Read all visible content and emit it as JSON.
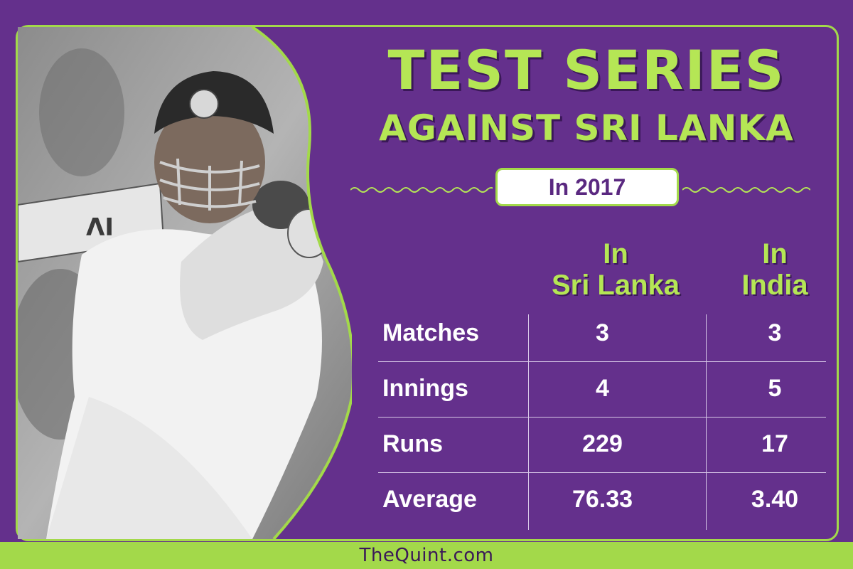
{
  "title": {
    "line1": "TEST SERIES",
    "line2": "AGAINST SRI LANKA"
  },
  "year_label": "In 2017",
  "table": {
    "columns": [
      {
        "line1": "In",
        "line2": "Sri Lanka"
      },
      {
        "line1": "In",
        "line2": "India"
      }
    ],
    "rows": [
      {
        "label": "Matches",
        "values": [
          "3",
          "3"
        ]
      },
      {
        "label": "Innings",
        "values": [
          "4",
          "5"
        ]
      },
      {
        "label": "Runs",
        "values": [
          "229",
          "17"
        ]
      },
      {
        "label": "Average",
        "values": [
          "76.33",
          "3.40"
        ]
      }
    ]
  },
  "footer": {
    "brand": "TheQuint.com"
  },
  "colors": {
    "background": "#64308c",
    "accent_green": "#a3d94a",
    "title_green": "#b5e655",
    "text_white": "#ffffff"
  },
  "photo": {
    "icon": "cricket-batsman-photo"
  }
}
